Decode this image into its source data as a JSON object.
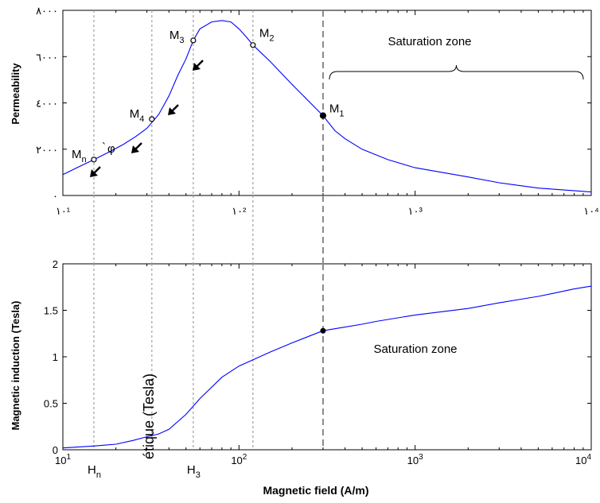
{
  "chart_data": [
    {
      "type": "line",
      "xscale": "log",
      "xlim": [
        10,
        10000
      ],
      "ylim": [
        0,
        8000
      ],
      "ylabel": "Permeability",
      "yticks": [
        "٠",
        "٢٠٠٠",
        "٤٠٠٠",
        "٦٠٠٠",
        "٨٠٠٠"
      ],
      "ytick_values": [
        0,
        2000,
        4000,
        6000,
        8000
      ],
      "xticks": [
        "١٠¹",
        "١٠²",
        "١٠³",
        "١٠⁴"
      ],
      "xtick_values": [
        10,
        100,
        1000,
        10000
      ],
      "series_color": "#0000ff",
      "x": [
        10,
        12,
        15,
        18,
        22,
        26,
        30,
        35,
        40,
        45,
        50,
        55,
        60,
        70,
        80,
        90,
        100,
        110,
        120,
        150,
        200,
        300,
        350,
        400,
        500,
        700,
        1000,
        2000,
        3000,
        5000,
        10000
      ],
      "y": [
        900,
        1200,
        1550,
        1850,
        2200,
        2550,
        2900,
        3500,
        4300,
        5200,
        5900,
        6700,
        7200,
        7500,
        7560,
        7500,
        7200,
        6850,
        6500,
        5800,
        4800,
        3450,
        2800,
        2450,
        2000,
        1550,
        1200,
        800,
        550,
        320,
        150
      ],
      "markers": [
        {
          "label": "M",
          "sub": "1",
          "x": 300,
          "y": 3450
        },
        {
          "label": "M",
          "sub": "2",
          "x": 120,
          "y": 6500
        },
        {
          "label": "M",
          "sub": "3",
          "x": 55,
          "y": 6700
        },
        {
          "label": "M",
          "sub": "4",
          "x": 32,
          "y": 3300
        },
        {
          "label": "M",
          "sub": "n",
          "x": 15,
          "y": 1550
        }
      ],
      "annotations": [
        {
          "text": "Saturation zone",
          "x_range": [
            300,
            10000
          ]
        }
      ],
      "stray_glyphs": [
        "φ",
        "`"
      ]
    },
    {
      "type": "line",
      "xscale": "log",
      "xlim": [
        10,
        10000
      ],
      "ylim": [
        0,
        2
      ],
      "ylabel": "Magnetic induction (Tesla)",
      "xlabel": "Magnetic field (A/m)",
      "yticks": [
        "0",
        "0.5",
        "1",
        "1.5",
        "2"
      ],
      "ytick_values": [
        0,
        0.5,
        1,
        1.5,
        2
      ],
      "xticks_base": "10",
      "xticks_exp": [
        "1",
        "2",
        "3",
        "4"
      ],
      "xtick_values": [
        10,
        100,
        1000,
        10000
      ],
      "series_color": "#0000ff",
      "x": [
        10,
        15,
        20,
        25,
        30,
        35,
        40,
        50,
        60,
        80,
        100,
        150,
        200,
        300,
        400,
        500,
        600,
        1000,
        2000,
        3000,
        4000,
        5000,
        6000,
        8000,
        10000
      ],
      "y": [
        0.02,
        0.04,
        0.06,
        0.1,
        0.14,
        0.17,
        0.22,
        0.38,
        0.55,
        0.78,
        0.9,
        1.05,
        1.15,
        1.28,
        1.32,
        1.35,
        1.38,
        1.45,
        1.52,
        1.58,
        1.62,
        1.65,
        1.68,
        1.73,
        1.76
      ],
      "markers": [
        {
          "x": 300,
          "y": 1.28
        }
      ],
      "annotations": [
        {
          "text": "Saturation zone"
        }
      ],
      "h_labels": [
        {
          "label": "H",
          "sub": "n",
          "x": 15
        },
        {
          "label": "H",
          "sub": "3",
          "x": 55
        }
      ],
      "rotated_overlay": "étique (Tesla)"
    }
  ],
  "guides": {
    "dotted_x": [
      15,
      32,
      55,
      120
    ],
    "dashed_x": 300,
    "color": "#a0a0a0"
  }
}
